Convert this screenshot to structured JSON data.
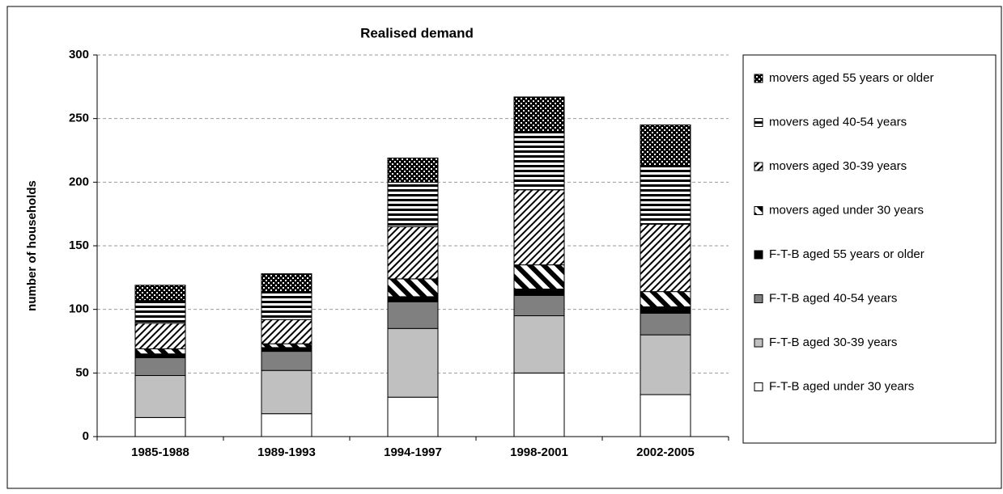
{
  "chart_data": {
    "type": "stacked-bar",
    "title": "Realised demand",
    "y_label": "number of households",
    "categories": [
      "1985-1988",
      "1989-1993",
      "1994-1997",
      "1998-2001",
      "2002-2005"
    ],
    "series": [
      {
        "name": "F-T-B aged under 30 years",
        "color": "#ffffff",
        "pattern": "solid",
        "values": [
          15,
          18,
          31,
          50,
          33
        ]
      },
      {
        "name": "F-T-B aged 30-39 years",
        "color": "#c0c0c0",
        "pattern": "solid",
        "values": [
          33,
          34,
          54,
          45,
          47
        ]
      },
      {
        "name": "F-T-B aged 40-54 years",
        "color": "#808080",
        "pattern": "solid",
        "values": [
          14,
          15,
          21,
          16,
          17
        ]
      },
      {
        "name": "F-T-B aged 55 years or older",
        "color": "#000000",
        "pattern": "solid",
        "values": [
          3,
          3,
          4,
          5,
          5
        ]
      },
      {
        "name": "movers aged under 30 years",
        "color": "#000000",
        "pattern": "wide-diagonal",
        "values": [
          4,
          3,
          14,
          19,
          12
        ]
      },
      {
        "name": "movers aged 30-39 years",
        "color": "#000000",
        "pattern": "narrow-diagonal",
        "values": [
          20,
          19,
          41,
          59,
          53
        ]
      },
      {
        "name": "movers aged 40-54 years",
        "color": "#000000",
        "pattern": "horizontal",
        "values": [
          18,
          22,
          35,
          46,
          46
        ]
      },
      {
        "name": "movers aged 55 years or older",
        "color": "#000000",
        "pattern": "dotted",
        "values": [
          12,
          14,
          19,
          27,
          32
        ]
      }
    ],
    "ylim": [
      0,
      300
    ],
    "yticks": [
      0,
      50,
      100,
      150,
      200,
      250,
      300
    ],
    "grid": true,
    "legend": "right"
  }
}
